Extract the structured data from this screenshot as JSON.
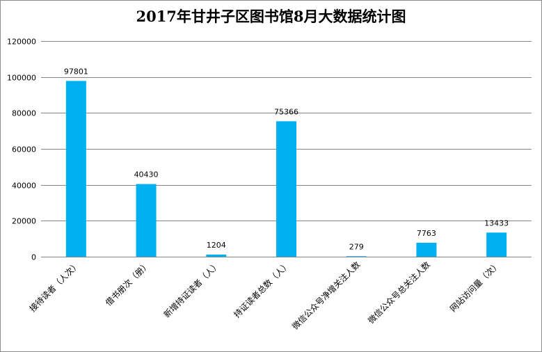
{
  "chart_data": {
    "type": "bar",
    "title": "2017年甘井子区图书馆8月大数据统计图",
    "categories": [
      "接待读者（人次）",
      "借书册次（册）",
      "新增持证读者（人）",
      "持证读者总数（人）",
      "微信公众号净增关注人数",
      "微信公众号总关注人数",
      "网站访问量（次）"
    ],
    "values": [
      97801,
      40430,
      1204,
      75366,
      279,
      7763,
      13433
    ],
    "value_labels": [
      "97801",
      "40430",
      "1204",
      "75366",
      "279",
      "7763",
      "13433"
    ],
    "y_ticks": [
      "0",
      "20000",
      "40000",
      "60000",
      "80000",
      "100000",
      "120000"
    ],
    "ylim": [
      0,
      120000
    ],
    "xlabel": "",
    "ylabel": "",
    "grid": true,
    "legend": "none",
    "bar_color": "#00B0F0",
    "grid_color": "#868686"
  }
}
